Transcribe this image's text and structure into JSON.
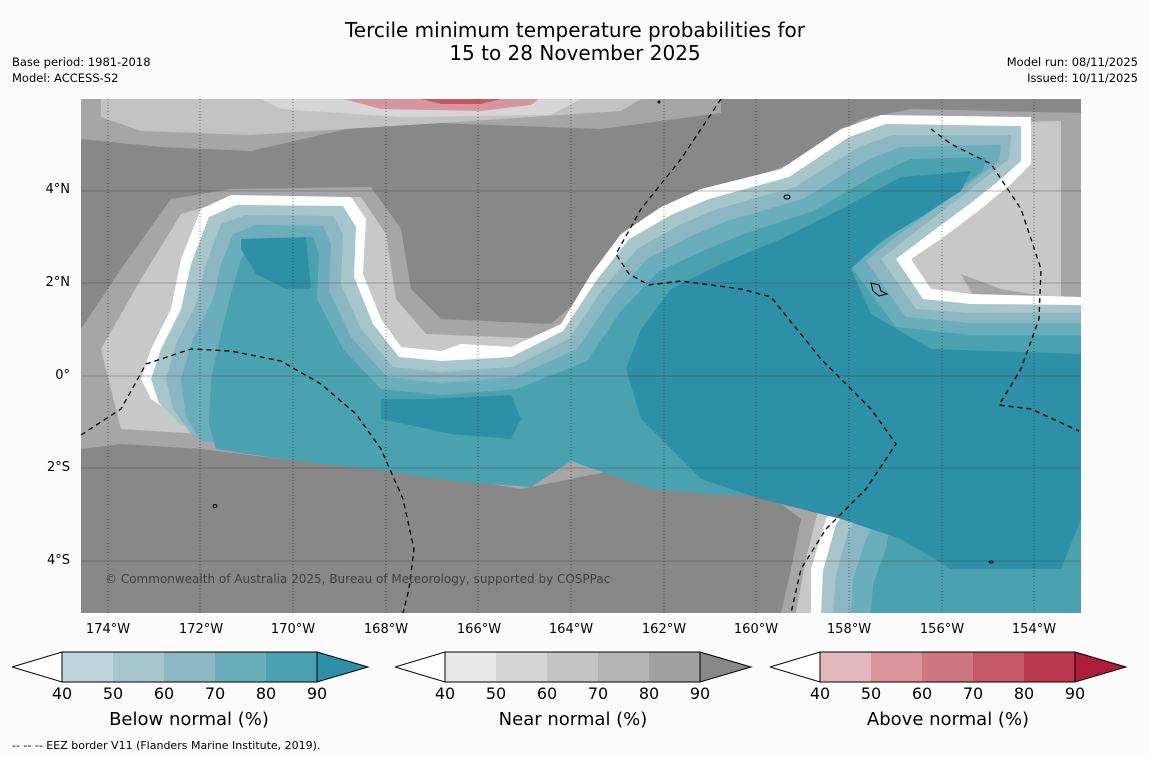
{
  "title": {
    "line1": "Tercile minimum temperature probabilities for",
    "line2": "15 to 28 November 2025"
  },
  "meta_left": {
    "base_period": "Base period: 1981-2018",
    "model": "Model: ACCESS-S2"
  },
  "meta_right": {
    "model_run": "Model run: 08/11/2025",
    "issued": "Issued: 10/11/2025"
  },
  "map": {
    "lat_labels": [
      "4°N",
      "2°N",
      "0°",
      "2°S",
      "4°S"
    ],
    "lon_labels": [
      "174°W",
      "172°W",
      "170°W",
      "168°W",
      "166°W",
      "164°W",
      "162°W",
      "160°W",
      "158°W",
      "156°W",
      "154°W"
    ],
    "copyright": "© Commonwealth of Australia 2025, Bureau of Meteorology, supported by COSPPac",
    "field_description": "Below normal dominant along equatorial band and east; near normal elsewhere; small above-normal patch at top edge"
  },
  "colorbars": [
    {
      "label": "Below normal (%)",
      "ticks": [
        "40",
        "50",
        "60",
        "70",
        "80",
        "90"
      ],
      "colors": [
        "#bdd4da",
        "#a6c6cc",
        "#8bb6c2",
        "#6aaebb",
        "#4aa1b0",
        "#2e90a6"
      ]
    },
    {
      "label": "Near normal (%)",
      "ticks": [
        "40",
        "50",
        "60",
        "70",
        "80",
        "90"
      ],
      "colors": [
        "#e8e8e8",
        "#d6d6d6",
        "#c4c4c4",
        "#b4b4b4",
        "#a0a0a0",
        "#888888"
      ]
    },
    {
      "label": "Above normal (%)",
      "ticks": [
        "40",
        "50",
        "60",
        "70",
        "80",
        "90"
      ],
      "colors": [
        "#e3b9bf",
        "#d9959c",
        "#cf7780",
        "#c55a67",
        "#bb3a50",
        "#ad1d3b"
      ]
    }
  ],
  "footer": "--  --  -- EEZ border V11 (Flanders Marine Institute, 2019)."
}
